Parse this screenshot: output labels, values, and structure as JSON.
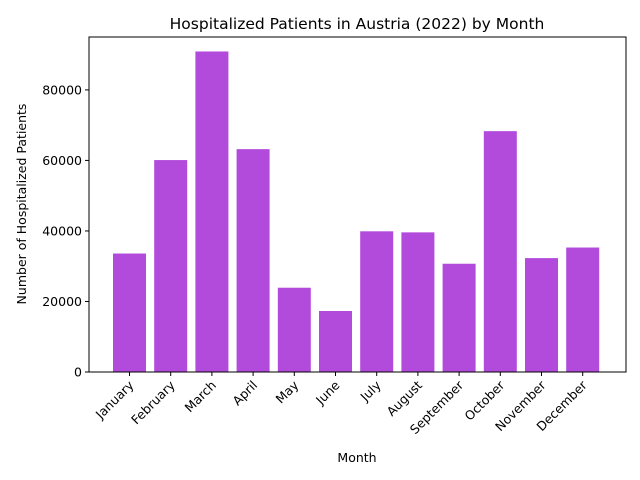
{
  "chart_data": {
    "type": "bar",
    "title": "Hospitalized Patients in Austria (2022) by Month",
    "xlabel": "Month",
    "ylabel": "Number of Hospitalized Patients",
    "categories": [
      "January",
      "February",
      "March",
      "April",
      "May",
      "June",
      "July",
      "August",
      "September",
      "October",
      "November",
      "December"
    ],
    "values": [
      33600,
      60100,
      90900,
      63200,
      23900,
      17300,
      39900,
      39600,
      30700,
      68300,
      32300,
      35300
    ],
    "ylim": [
      0,
      95000
    ],
    "yticks": [
      0,
      20000,
      40000,
      60000,
      80000
    ],
    "bar_color": "#b24bdb",
    "grid": false,
    "legend": "none"
  }
}
